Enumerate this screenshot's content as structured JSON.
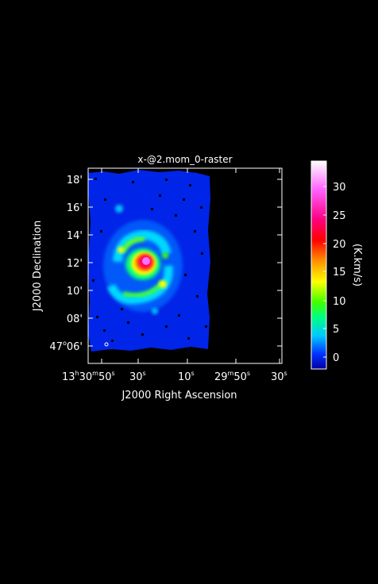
{
  "title": "x-@2.mom_0-raster",
  "x_axis_label": "J2000 Right Ascension",
  "y_axis_label": "J2000 Declination",
  "colorbar_label": "(K.km/s)",
  "ra_ticks": [
    {
      "h": "13",
      "m": "30",
      "s": "50"
    },
    {
      "s": "30"
    },
    {
      "s": "10"
    },
    {
      "m": "29",
      "s": "50"
    },
    {
      "s": "30"
    }
  ],
  "dec_ticks": [
    {
      "label": "18'"
    },
    {
      "label": "16'"
    },
    {
      "label": "14'"
    },
    {
      "label": "12'"
    },
    {
      "label": "10'"
    },
    {
      "label": "08'"
    },
    {
      "deg": "47",
      "label": "06'"
    }
  ],
  "colorbar_ticks": [
    "30",
    "25",
    "20",
    "15",
    "10",
    "5",
    "0"
  ],
  "colormap": [
    "#0000a0",
    "#0030ff",
    "#00c8ff",
    "#00ff80",
    "#40ff00",
    "#ffff00",
    "#ff9000",
    "#ff0000",
    "#ff0080",
    "#ff60ff",
    "#ffffff"
  ]
}
